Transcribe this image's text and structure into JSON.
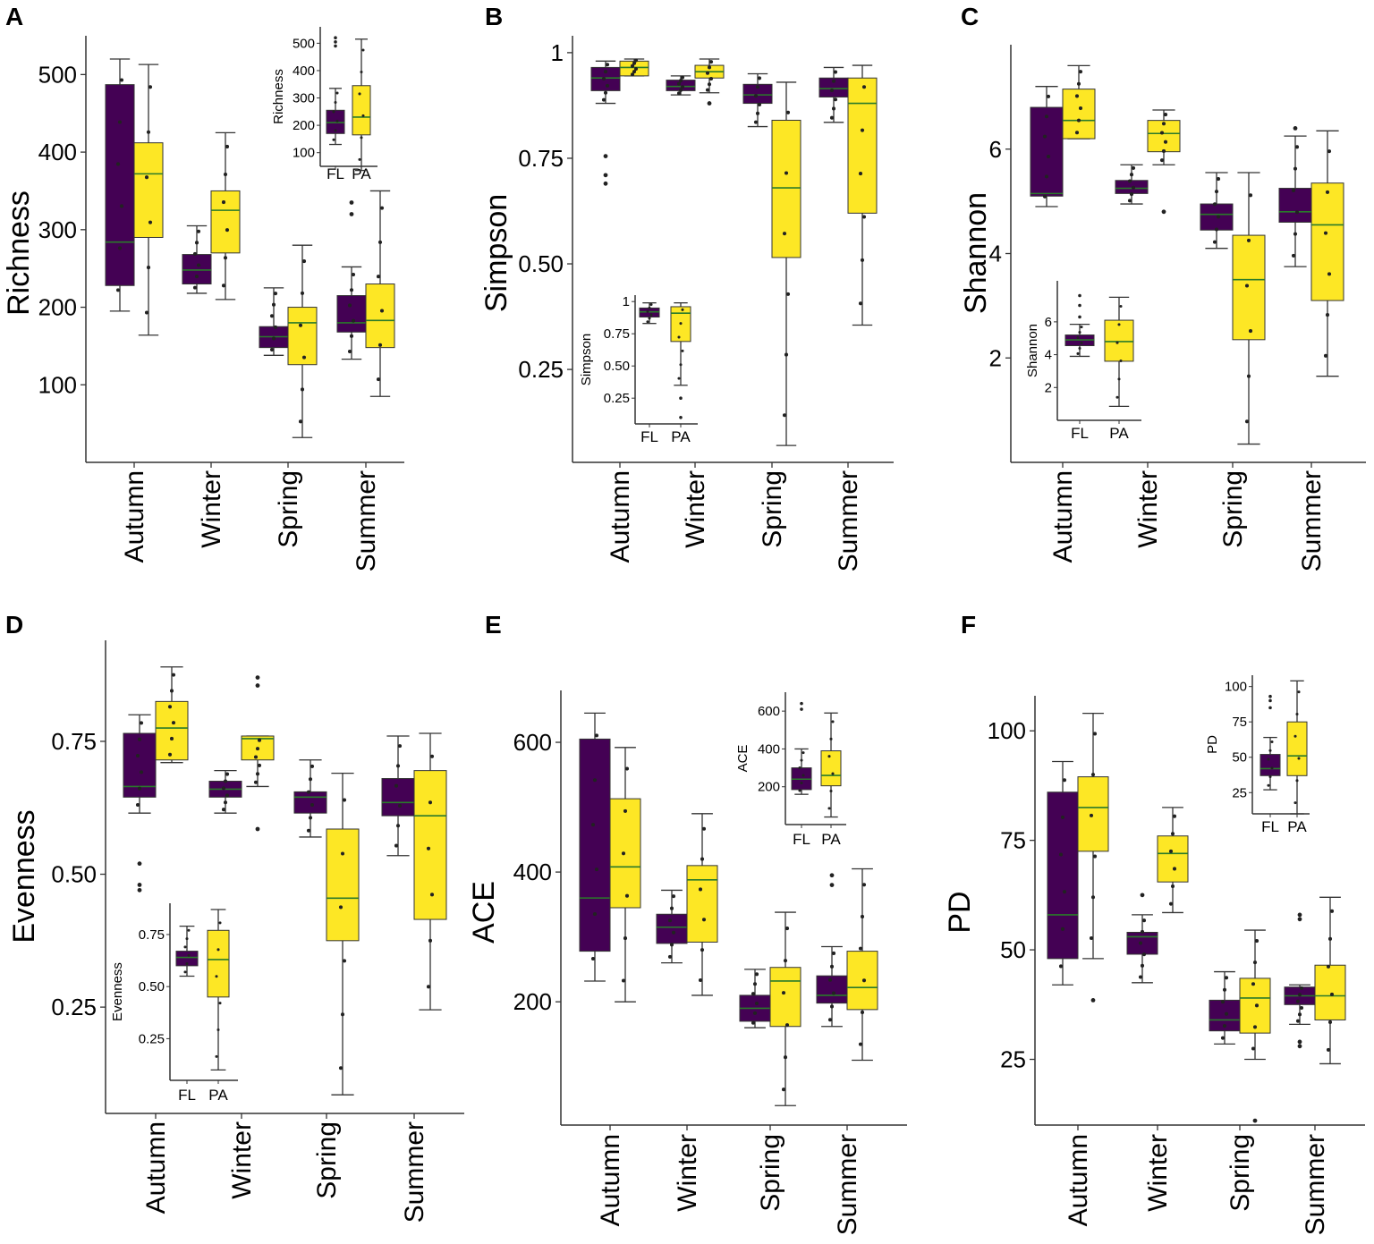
{
  "colors": {
    "FL": "#440154",
    "PA": "#fde725",
    "median": "#2a7a2a",
    "axis": "#333333",
    "point": "#222222"
  },
  "chart_data": [
    {
      "panel": "A",
      "type": "box",
      "ylabel": "Richness",
      "ylim": [
        0,
        550
      ],
      "yticks": [
        100,
        200,
        300,
        400,
        500
      ],
      "categories": [
        "Autumn",
        "Winter",
        "Spring",
        "Summer"
      ],
      "series": [
        {
          "name": "FL",
          "boxes": [
            {
              "min": 195,
              "q1": 228,
              "median": 284,
              "q3": 487,
              "max": 520,
              "outliers": []
            },
            {
              "min": 218,
              "q1": 230,
              "median": 248,
              "q3": 268,
              "max": 305,
              "outliers": []
            },
            {
              "min": 138,
              "q1": 148,
              "median": 162,
              "q3": 175,
              "max": 225,
              "outliers": []
            },
            {
              "min": 133,
              "q1": 168,
              "median": 180,
              "q3": 215,
              "max": 252,
              "outliers": [
                320,
                335
              ]
            }
          ]
        },
        {
          "name": "PA",
          "boxes": [
            {
              "min": 164,
              "q1": 290,
              "median": 372,
              "q3": 412,
              "max": 513,
              "outliers": []
            },
            {
              "min": 210,
              "q1": 270,
              "median": 325,
              "q3": 350,
              "max": 425,
              "outliers": []
            },
            {
              "min": 32,
              "q1": 126,
              "median": 180,
              "q3": 200,
              "max": 280,
              "outliers": []
            },
            {
              "min": 85,
              "q1": 148,
              "median": 183,
              "q3": 230,
              "max": 350,
              "outliers": []
            }
          ]
        }
      ],
      "inset": {
        "ylabel": "Richness",
        "ylim": [
          50,
          560
        ],
        "yticks": [
          100,
          200,
          300,
          400,
          500
        ],
        "categories": [
          "FL",
          "PA"
        ],
        "boxes": [
          {
            "min": 130,
            "q1": 170,
            "median": 210,
            "q3": 255,
            "max": 335,
            "outliers": [
              490,
              505,
              520
            ]
          },
          {
            "min": 35,
            "q1": 165,
            "median": 230,
            "q3": 345,
            "max": 515,
            "outliers": []
          }
        ]
      }
    },
    {
      "panel": "B",
      "type": "box",
      "ylabel": "Simpson",
      "ylim": [
        0.03,
        1.04
      ],
      "yticks": [
        0.25,
        0.5,
        0.75,
        1.0
      ],
      "categories": [
        "Autumn",
        "Winter",
        "Spring",
        "Summer"
      ],
      "series": [
        {
          "name": "FL",
          "boxes": [
            {
              "min": 0.88,
              "q1": 0.91,
              "median": 0.94,
              "q3": 0.965,
              "max": 0.98,
              "outliers": [
                0.69,
                0.71,
                0.755
              ]
            },
            {
              "min": 0.9,
              "q1": 0.91,
              "median": 0.92,
              "q3": 0.935,
              "max": 0.945,
              "outliers": []
            },
            {
              "min": 0.825,
              "q1": 0.88,
              "median": 0.9,
              "q3": 0.925,
              "max": 0.95,
              "outliers": []
            },
            {
              "min": 0.835,
              "q1": 0.895,
              "median": 0.915,
              "q3": 0.94,
              "max": 0.965,
              "outliers": []
            }
          ]
        },
        {
          "name": "PA",
          "boxes": [
            {
              "min": 0.945,
              "q1": 0.945,
              "median": 0.965,
              "q3": 0.98,
              "max": 0.985,
              "outliers": []
            },
            {
              "min": 0.905,
              "q1": 0.94,
              "median": 0.955,
              "q3": 0.97,
              "max": 0.985,
              "outliers": [
                0.88
              ]
            },
            {
              "min": 0.07,
              "q1": 0.515,
              "median": 0.68,
              "q3": 0.84,
              "max": 0.93,
              "outliers": []
            },
            {
              "min": 0.355,
              "q1": 0.62,
              "median": 0.88,
              "q3": 0.94,
              "max": 0.97,
              "outliers": []
            }
          ]
        }
      ],
      "inset": {
        "ylabel": "Simpson",
        "ylim": [
          0.05,
          1.05
        ],
        "yticks": [
          0.25,
          0.5,
          0.75,
          1.0
        ],
        "categories": [
          "FL",
          "PA"
        ],
        "boxes": [
          {
            "min": 0.83,
            "q1": 0.88,
            "median": 0.92,
            "q3": 0.95,
            "max": 0.99,
            "outliers": []
          },
          {
            "min": 0.35,
            "q1": 0.69,
            "median": 0.91,
            "q3": 0.96,
            "max": 0.99,
            "outliers": [
              0.1,
              0.25
            ]
          }
        ]
      }
    },
    {
      "panel": "C",
      "type": "box",
      "ylabel": "Shannon",
      "ylim": [
        0,
        8
      ],
      "yticks": [
        2,
        4,
        6
      ],
      "categories": [
        "Autumn",
        "Winter",
        "Spring",
        "Summer"
      ],
      "series": [
        {
          "name": "FL",
          "boxes": [
            {
              "min": 4.9,
              "q1": 5.1,
              "median": 5.15,
              "q3": 6.8,
              "max": 7.2,
              "outliers": []
            },
            {
              "min": 4.95,
              "q1": 5.15,
              "median": 5.25,
              "q3": 5.4,
              "max": 5.7,
              "outliers": []
            },
            {
              "min": 4.1,
              "q1": 4.45,
              "median": 4.75,
              "q3": 4.95,
              "max": 5.55,
              "outliers": []
            },
            {
              "min": 3.75,
              "q1": 4.6,
              "median": 4.8,
              "q3": 5.25,
              "max": 6.25,
              "outliers": [
                6.4
              ]
            }
          ]
        },
        {
          "name": "PA",
          "boxes": [
            {
              "min": 6.2,
              "q1": 6.2,
              "median": 6.55,
              "q3": 7.15,
              "max": 7.6,
              "outliers": []
            },
            {
              "min": 5.7,
              "q1": 5.95,
              "median": 6.3,
              "q3": 6.55,
              "max": 6.75,
              "outliers": [
                4.8
              ]
            },
            {
              "min": 0.35,
              "q1": 2.35,
              "median": 3.5,
              "q3": 4.35,
              "max": 5.55,
              "outliers": []
            },
            {
              "min": 1.65,
              "q1": 3.1,
              "median": 4.55,
              "q3": 5.35,
              "max": 6.35,
              "outliers": []
            }
          ]
        }
      ],
      "inset": {
        "ylabel": "Shannon",
        "ylim": [
          0,
          8.5
        ],
        "yticks": [
          2,
          4,
          6
        ],
        "categories": [
          "FL",
          "PA"
        ],
        "boxes": [
          {
            "min": 3.9,
            "q1": 4.55,
            "median": 4.9,
            "q3": 5.2,
            "max": 5.85,
            "outliers": [
              6.3,
              7.0,
              7.6
            ]
          },
          {
            "min": 0.85,
            "q1": 3.6,
            "median": 4.8,
            "q3": 6.1,
            "max": 7.5,
            "outliers": []
          }
        ]
      }
    },
    {
      "panel": "D",
      "type": "box",
      "ylabel": "Evenness",
      "ylim": [
        0.05,
        0.94
      ],
      "yticks": [
        0.25,
        0.5,
        0.75
      ],
      "categories": [
        "Autumn",
        "Winter",
        "Spring",
        "Summer"
      ],
      "series": [
        {
          "name": "FL",
          "boxes": [
            {
              "min": 0.615,
              "q1": 0.645,
              "median": 0.665,
              "q3": 0.765,
              "max": 0.8,
              "outliers": [
                0.47,
                0.48,
                0.52
              ]
            },
            {
              "min": 0.615,
              "q1": 0.645,
              "median": 0.66,
              "q3": 0.675,
              "max": 0.695,
              "outliers": []
            },
            {
              "min": 0.57,
              "q1": 0.615,
              "median": 0.645,
              "q3": 0.655,
              "max": 0.715,
              "outliers": []
            },
            {
              "min": 0.535,
              "q1": 0.61,
              "median": 0.635,
              "q3": 0.68,
              "max": 0.76,
              "outliers": []
            }
          ]
        },
        {
          "name": "PA",
          "boxes": [
            {
              "min": 0.71,
              "q1": 0.715,
              "median": 0.775,
              "q3": 0.825,
              "max": 0.89,
              "outliers": []
            },
            {
              "min": 0.665,
              "q1": 0.715,
              "median": 0.755,
              "q3": 0.76,
              "max": 0.76,
              "outliers": [
                0.585,
                0.855,
                0.87
              ]
            },
            {
              "min": 0.085,
              "q1": 0.375,
              "median": 0.455,
              "q3": 0.585,
              "max": 0.69,
              "outliers": []
            },
            {
              "min": 0.245,
              "q1": 0.415,
              "median": 0.61,
              "q3": 0.695,
              "max": 0.765,
              "outliers": []
            }
          ]
        }
      ],
      "inset": {
        "ylabel": "Evenness",
        "ylim": [
          0.05,
          0.9
        ],
        "yticks": [
          0.25,
          0.5,
          0.75
        ],
        "categories": [
          "FL",
          "PA"
        ],
        "boxes": [
          {
            "min": 0.55,
            "q1": 0.6,
            "median": 0.64,
            "q3": 0.67,
            "max": 0.79,
            "outliers": []
          },
          {
            "min": 0.1,
            "q1": 0.45,
            "median": 0.63,
            "q3": 0.77,
            "max": 0.87,
            "outliers": []
          }
        ]
      }
    },
    {
      "panel": "E",
      "type": "box",
      "ylabel": "ACE",
      "ylim": [
        10,
        680
      ],
      "yticks": [
        200,
        400,
        600
      ],
      "categories": [
        "Autumn",
        "Winter",
        "Spring",
        "Summer"
      ],
      "series": [
        {
          "name": "FL",
          "boxes": [
            {
              "min": 232,
              "q1": 278,
              "median": 360,
              "q3": 605,
              "max": 645,
              "outliers": []
            },
            {
              "min": 260,
              "q1": 290,
              "median": 315,
              "q3": 335,
              "max": 372,
              "outliers": []
            },
            {
              "min": 160,
              "q1": 170,
              "median": 190,
              "q3": 210,
              "max": 250,
              "outliers": []
            },
            {
              "min": 162,
              "q1": 198,
              "median": 210,
              "q3": 240,
              "max": 285,
              "outliers": [
                380,
                395
              ]
            }
          ]
        },
        {
          "name": "PA",
          "boxes": [
            {
              "min": 200,
              "q1": 345,
              "median": 408,
              "q3": 513,
              "max": 592,
              "outliers": []
            },
            {
              "min": 210,
              "q1": 292,
              "median": 388,
              "q3": 410,
              "max": 490,
              "outliers": []
            },
            {
              "min": 40,
              "q1": 162,
              "median": 232,
              "q3": 253,
              "max": 338,
              "outliers": []
            },
            {
              "min": 110,
              "q1": 188,
              "median": 222,
              "q3": 278,
              "max": 405,
              "outliers": []
            }
          ]
        }
      ],
      "inset": {
        "ylabel": "ACE",
        "ylim": [
          0,
          700
        ],
        "yticks": [
          200,
          400,
          600
        ],
        "categories": [
          "FL",
          "PA"
        ],
        "boxes": [
          {
            "min": 160,
            "q1": 185,
            "median": 240,
            "q3": 300,
            "max": 400,
            "outliers": [
              610,
              640
            ]
          },
          {
            "min": 40,
            "q1": 205,
            "median": 260,
            "q3": 390,
            "max": 590,
            "outliers": []
          }
        ]
      }
    },
    {
      "panel": "F",
      "type": "box",
      "ylabel": "PD",
      "ylim": [
        10,
        108
      ],
      "yticks": [
        25,
        50,
        75,
        100
      ],
      "categories": [
        "Autumn",
        "Winter",
        "Spring",
        "Summer"
      ],
      "series": [
        {
          "name": "FL",
          "boxes": [
            {
              "min": 42,
              "q1": 48,
              "median": 58,
              "q3": 86,
              "max": 93,
              "outliers": []
            },
            {
              "min": 42.5,
              "q1": 49,
              "median": 53,
              "q3": 54,
              "max": 58,
              "outliers": [
                62.5
              ]
            },
            {
              "min": 28.5,
              "q1": 31.5,
              "median": 34,
              "q3": 38.5,
              "max": 45,
              "outliers": []
            },
            {
              "min": 33,
              "q1": 37.5,
              "median": 39.5,
              "q3": 41.5,
              "max": 42,
              "outliers": [
                28,
                29,
                57,
                58
              ]
            }
          ]
        },
        {
          "name": "PA",
          "boxes": [
            {
              "min": 48,
              "q1": 72.5,
              "median": 82.5,
              "q3": 89.5,
              "max": 104,
              "outliers": [
                38.5
              ]
            },
            {
              "min": 58.5,
              "q1": 65.5,
              "median": 72,
              "q3": 76,
              "max": 82.5,
              "outliers": []
            },
            {
              "min": 25,
              "q1": 31,
              "median": 39,
              "q3": 43.5,
              "max": 54.5,
              "outliers": [
                11
              ]
            },
            {
              "min": 24,
              "q1": 34,
              "median": 39.5,
              "q3": 46.5,
              "max": 62,
              "outliers": []
            }
          ]
        }
      ],
      "inset": {
        "ylabel": "PD",
        "ylim": [
          10,
          108
        ],
        "yticks": [
          25,
          50,
          75,
          100
        ],
        "categories": [
          "FL",
          "PA"
        ],
        "boxes": [
          {
            "min": 27,
            "q1": 37,
            "median": 42,
            "q3": 52,
            "max": 64,
            "outliers": [
              85,
              90,
              93
            ]
          },
          {
            "min": 10,
            "q1": 37,
            "median": 51,
            "q3": 75,
            "max": 104,
            "outliers": []
          }
        ]
      }
    }
  ]
}
